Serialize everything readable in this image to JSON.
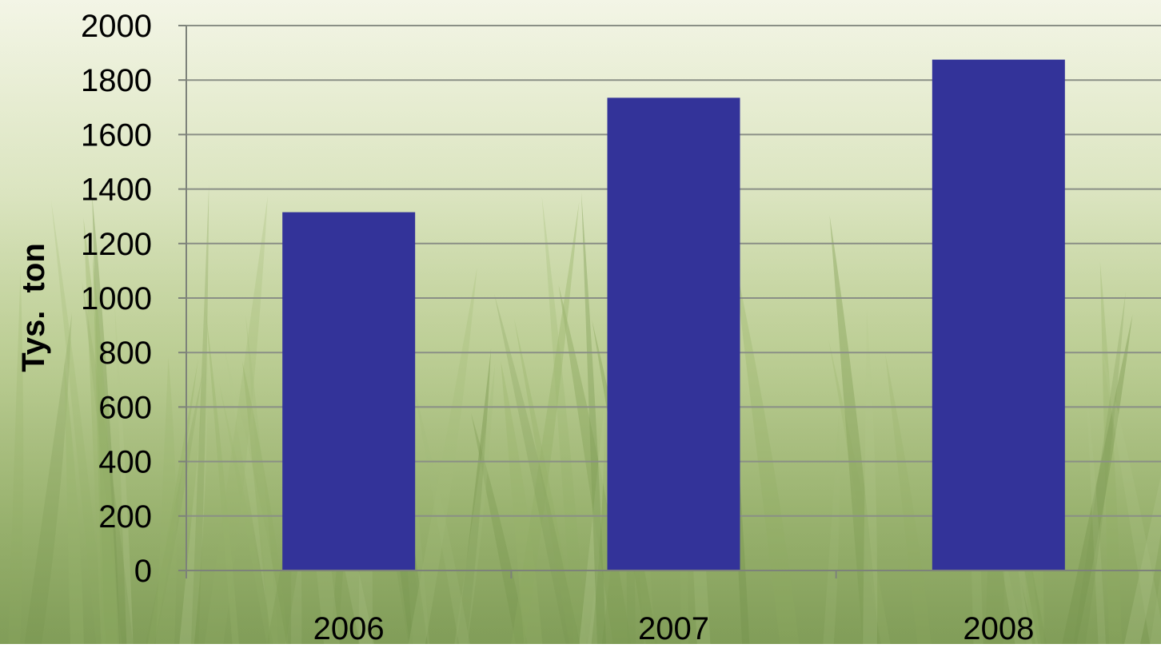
{
  "chart_data": {
    "type": "bar",
    "categories": [
      "2006",
      "2007",
      "2008"
    ],
    "values": [
      1315,
      1735,
      1875
    ],
    "title": "",
    "xlabel": "",
    "ylabel": "Tys.  ton",
    "ylim": [
      0,
      2000
    ],
    "yticks": [
      0,
      200,
      400,
      600,
      800,
      1000,
      1200,
      1400,
      1600,
      1800,
      2000
    ],
    "grid": true,
    "legend": "none",
    "colors": {
      "bar": "#333399",
      "gridline": "#8a8f86",
      "axis": "#7d827a",
      "text": "#000000",
      "background_light": "#eef2dc",
      "background_mid": "#c9d6a0",
      "background_dark": "#7f9c5c"
    }
  }
}
